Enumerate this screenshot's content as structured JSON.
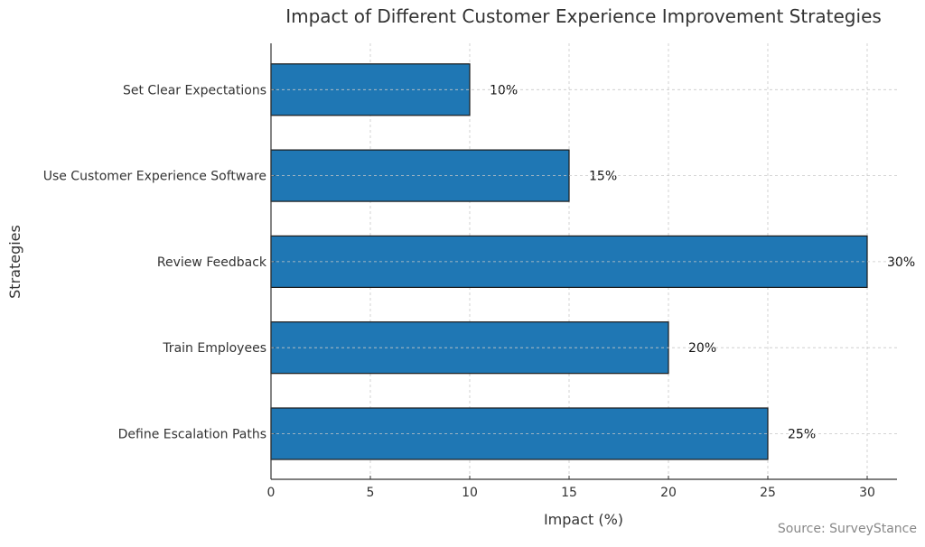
{
  "chart_data": {
    "type": "bar",
    "orientation": "horizontal",
    "title": "Impact of Different Customer Experience Improvement Strategies",
    "xlabel": "Impact (%)",
    "ylabel": "Strategies",
    "categories": [
      "Define Escalation Paths",
      "Train Employees",
      "Review Feedback",
      "Use Customer Experience Software",
      "Set Clear Expectations"
    ],
    "values": [
      25,
      20,
      30,
      15,
      10
    ],
    "data_labels": [
      "25%",
      "20%",
      "30%",
      "15%",
      "10%"
    ],
    "xlim": [
      0,
      31.5
    ],
    "xticks": [
      0,
      5,
      10,
      15,
      20,
      25,
      30
    ],
    "grid": true,
    "bar_color": "#1f77b4",
    "edge_color": "#1a1a1a",
    "source": "Source: SurveyStance"
  }
}
